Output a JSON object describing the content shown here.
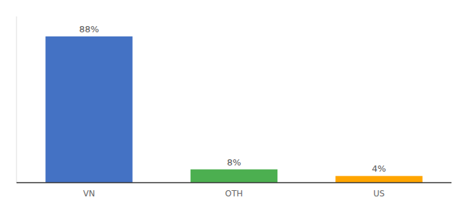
{
  "chart_data": {
    "type": "bar",
    "categories": [
      "VN",
      "OTH",
      "US"
    ],
    "values": [
      88,
      8,
      4
    ],
    "value_labels": [
      "88%",
      "8%",
      "4%"
    ],
    "colors": [
      "#4472c4",
      "#4caf50",
      "#ffa500"
    ],
    "ylim": [
      0,
      100
    ],
    "data_labels": true,
    "tick_labels": "x",
    "grid": false
  }
}
